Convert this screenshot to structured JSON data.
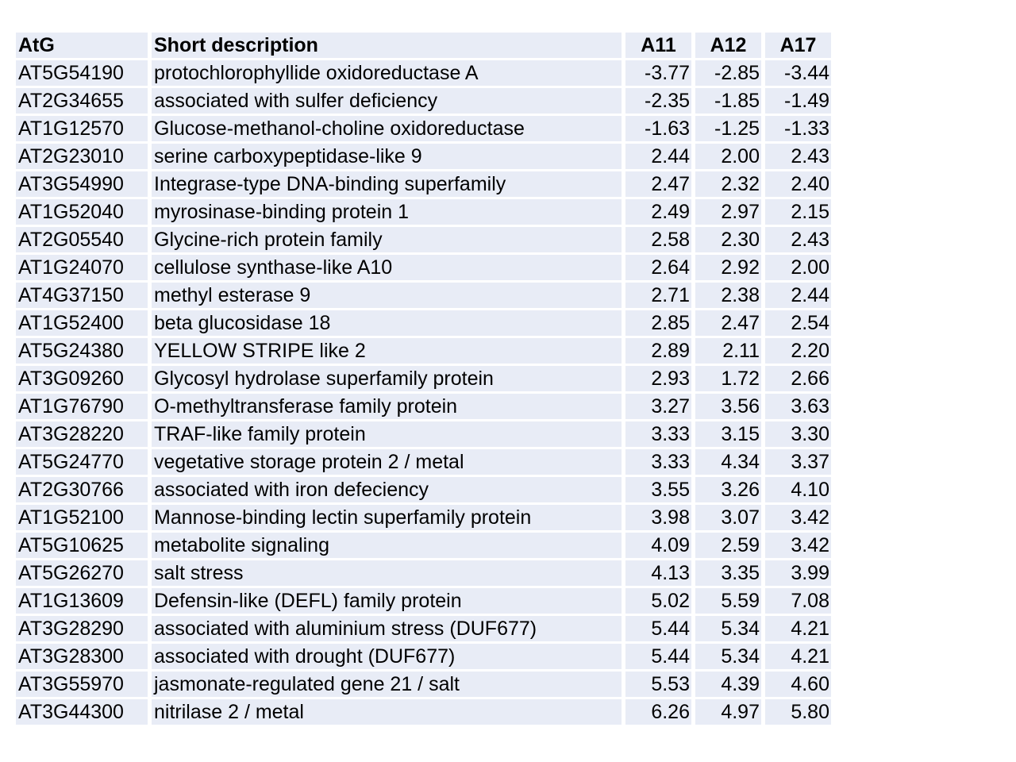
{
  "table": {
    "headers": {
      "atg": "AtG",
      "description": "Short description",
      "a11": "A11",
      "a12": "A12",
      "a17": "A17"
    },
    "rows": [
      {
        "atg": "AT5G54190",
        "description": "protochlorophyllide oxidoreductase A",
        "a11": "-3.77",
        "a12": "-2.85",
        "a17": "-3.44"
      },
      {
        "atg": "AT2G34655",
        "description": "associated with sulfer deficiency",
        "a11": "-2.35",
        "a12": "-1.85",
        "a17": "-1.49"
      },
      {
        "atg": "AT1G12570",
        "description": "Glucose-methanol-choline oxidoreductase",
        "a11": "-1.63",
        "a12": "-1.25",
        "a17": "-1.33"
      },
      {
        "atg": "AT2G23010",
        "description": "serine carboxypeptidase-like 9",
        "a11": "2.44",
        "a12": "2.00",
        "a17": "2.43"
      },
      {
        "atg": "AT3G54990",
        "description": "Integrase-type DNA-binding superfamily",
        "a11": "2.47",
        "a12": "2.32",
        "a17": "2.40"
      },
      {
        "atg": "AT1G52040",
        "description": "myrosinase-binding protein 1",
        "a11": "2.49",
        "a12": "2.97",
        "a17": "2.15"
      },
      {
        "atg": "AT2G05540",
        "description": "Glycine-rich protein family",
        "a11": "2.58",
        "a12": "2.30",
        "a17": "2.43"
      },
      {
        "atg": "AT1G24070",
        "description": "cellulose synthase-like A10",
        "a11": "2.64",
        "a12": "2.92",
        "a17": "2.00"
      },
      {
        "atg": "AT4G37150",
        "description": "methyl esterase 9",
        "a11": "2.71",
        "a12": "2.38",
        "a17": "2.44"
      },
      {
        "atg": "AT1G52400",
        "description": "beta glucosidase 18",
        "a11": "2.85",
        "a12": "2.47",
        "a17": "2.54"
      },
      {
        "atg": "AT5G24380",
        "description": "YELLOW STRIPE like 2",
        "a11": "2.89",
        "a12": "2.11",
        "a17": "2.20"
      },
      {
        "atg": "AT3G09260",
        "description": "Glycosyl hydrolase superfamily protein",
        "a11": "2.93",
        "a12": "1.72",
        "a17": "2.66"
      },
      {
        "atg": "AT1G76790",
        "description": "O-methyltransferase family protein",
        "a11": "3.27",
        "a12": "3.56",
        "a17": "3.63"
      },
      {
        "atg": "AT3G28220",
        "description": "TRAF-like family protein",
        "a11": "3.33",
        "a12": "3.15",
        "a17": "3.30"
      },
      {
        "atg": "AT5G24770",
        "description": "vegetative storage protein 2 / metal",
        "a11": "3.33",
        "a12": "4.34",
        "a17": "3.37"
      },
      {
        "atg": "AT2G30766",
        "description": "associated with iron defeciency",
        "a11": "3.55",
        "a12": "3.26",
        "a17": "4.10"
      },
      {
        "atg": "AT1G52100",
        "description": "Mannose-binding lectin superfamily protein",
        "a11": "3.98",
        "a12": "3.07",
        "a17": "3.42"
      },
      {
        "atg": "AT5G10625",
        "description": "metabolite signaling",
        "a11": "4.09",
        "a12": "2.59",
        "a17": "3.42"
      },
      {
        "atg": "AT5G26270",
        "description": "salt stress",
        "a11": "4.13",
        "a12": "3.35",
        "a17": "3.99"
      },
      {
        "atg": "AT1G13609",
        "description": "Defensin-like (DEFL) family protein",
        "a11": "5.02",
        "a12": "5.59",
        "a17": "7.08"
      },
      {
        "atg": "AT3G28290",
        "description": "associated with aluminium stress (DUF677)",
        "a11": "5.44",
        "a12": "5.34",
        "a17": "4.21"
      },
      {
        "atg": "AT3G28300",
        "description": "associated with drought (DUF677)",
        "a11": "5.44",
        "a12": "5.34",
        "a17": "4.21"
      },
      {
        "atg": "AT3G55970",
        "description": "jasmonate-regulated gene 21 / salt",
        "a11": "5.53",
        "a12": "4.39",
        "a17": "4.60"
      },
      {
        "atg": "AT3G44300",
        "description": "nitrilase 2 / metal",
        "a11": "6.26",
        "a12": "4.97",
        "a17": "5.80"
      }
    ]
  },
  "colors": {
    "row_background": "#e8ecf6",
    "page_background": "#ffffff",
    "text": "#000000"
  }
}
